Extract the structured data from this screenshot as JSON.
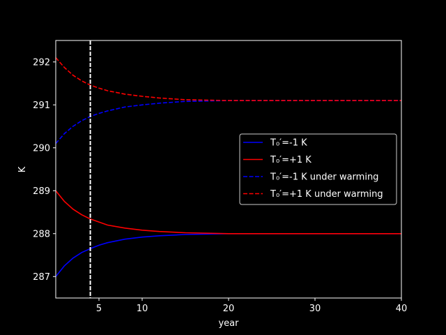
{
  "chart_data": {
    "type": "line",
    "xlabel": "year",
    "ylabel": "K",
    "xlim": [
      0,
      40
    ],
    "ylim": [
      286.5,
      292.5
    ],
    "xticks": [
      5,
      10,
      20,
      30,
      40
    ],
    "yticks": [
      287,
      288,
      289,
      290,
      291,
      292
    ],
    "vline_x": 4.0,
    "legend_position": "center-right",
    "legend": {
      "entries": [
        {
          "label": "T₀′=-1 K",
          "color": "#0000ff",
          "dash": "solid"
        },
        {
          "label": "T₀′=+1 K",
          "color": "#ff0000",
          "dash": "solid"
        },
        {
          "label": "T₀′=-1 K under warming",
          "color": "#0000ff",
          "dash": "dashed"
        },
        {
          "label": "T₀′=+1 K under warming",
          "color": "#ff0000",
          "dash": "dashed"
        }
      ]
    },
    "series": [
      {
        "color": "#0000ff",
        "dash": "solid",
        "x": [
          0,
          1,
          2,
          3,
          4,
          5,
          6,
          8,
          10,
          12,
          15,
          20,
          25,
          30,
          35,
          40
        ],
        "y": [
          287.0,
          287.25,
          287.43,
          287.56,
          287.65,
          287.73,
          287.79,
          287.87,
          287.92,
          287.95,
          287.98,
          288.0,
          288.0,
          288.0,
          288.0,
          288.0
        ]
      },
      {
        "color": "#ff0000",
        "dash": "solid",
        "x": [
          0,
          1,
          2,
          3,
          4,
          5,
          6,
          8,
          10,
          12,
          15,
          20,
          25,
          30,
          35,
          40
        ],
        "y": [
          289.0,
          288.75,
          288.57,
          288.44,
          288.34,
          288.27,
          288.2,
          288.13,
          288.08,
          288.05,
          288.02,
          288.0,
          288.0,
          288.0,
          288.0,
          288.0
        ]
      },
      {
        "color": "#0000ff",
        "dash": "dashed",
        "x": [
          0,
          1,
          2,
          3,
          4,
          5,
          6,
          8,
          10,
          12,
          15,
          20,
          25,
          30,
          35,
          40
        ],
        "y": [
          290.1,
          290.33,
          290.5,
          290.63,
          290.73,
          290.8,
          290.86,
          290.95,
          291.0,
          291.04,
          291.08,
          291.1,
          291.1,
          291.1,
          291.1,
          291.1
        ]
      },
      {
        "color": "#ff0000",
        "dash": "dashed",
        "x": [
          0,
          1,
          2,
          3,
          4,
          5,
          6,
          8,
          10,
          12,
          15,
          20,
          25,
          30,
          35,
          40
        ],
        "y": [
          292.1,
          291.87,
          291.69,
          291.56,
          291.46,
          291.39,
          291.33,
          291.25,
          291.2,
          291.16,
          291.12,
          291.1,
          291.1,
          291.1,
          291.1,
          291.1
        ]
      }
    ]
  }
}
